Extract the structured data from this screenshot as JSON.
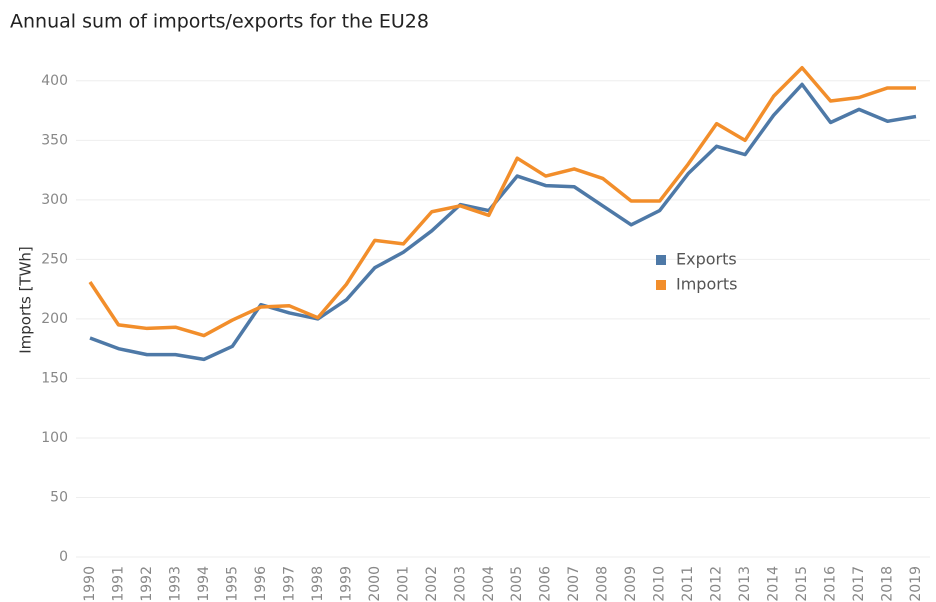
{
  "chart_data": {
    "type": "line",
    "title": "Annual sum of imports/exports for the EU28",
    "y_label": "Imports [TWh]",
    "categories": [
      "1990",
      "1991",
      "1992",
      "1993",
      "1994",
      "1995",
      "1996",
      "1997",
      "1998",
      "1999",
      "2000",
      "2001",
      "2002",
      "2003",
      "2004",
      "2005",
      "2006",
      "2007",
      "2008",
      "2009",
      "2010",
      "2011",
      "2012",
      "2013",
      "2014",
      "2015",
      "2016",
      "2017",
      "2018",
      "2019"
    ],
    "series": [
      {
        "name": "Exports",
        "color": "#4e79a7",
        "values": [
          184,
          175,
          170,
          170,
          166,
          177,
          212,
          205,
          200,
          216,
          243,
          256,
          274,
          296,
          291,
          320,
          312,
          311,
          295,
          279,
          291,
          322,
          345,
          338,
          371,
          397,
          365,
          376,
          366,
          370
        ]
      },
      {
        "name": "Imports",
        "color": "#f28e2b",
        "values": [
          231,
          195,
          192,
          193,
          186,
          199,
          210,
          211,
          201,
          229,
          266,
          263,
          290,
          295,
          287,
          335,
          320,
          326,
          318,
          299,
          299,
          330,
          364,
          350,
          387,
          411,
          383,
          386,
          394,
          394
        ]
      }
    ],
    "ylim": [
      0,
      420
    ],
    "yticks": [
      0,
      50,
      100,
      150,
      200,
      250,
      300,
      350,
      400
    ],
    "grid": true,
    "legend": "center-right"
  }
}
